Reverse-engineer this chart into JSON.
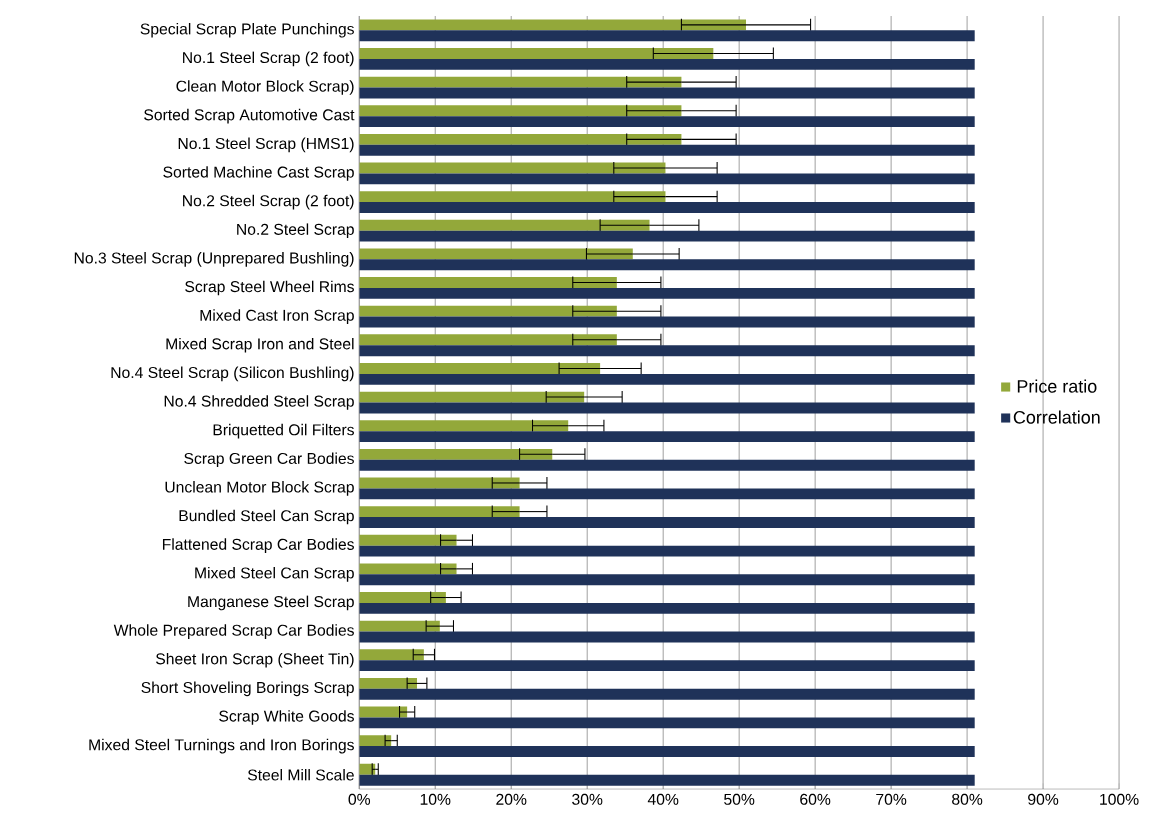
{
  "chart_data": {
    "type": "bar",
    "orientation": "horizontal",
    "categories": [
      "Special Scrap Plate Punchings",
      "No.1 Steel Scrap (2 foot)",
      "Clean Motor Block Scrap)",
      "Sorted Scrap Automotive Cast",
      "No.1 Steel Scrap (HMS1)",
      "Sorted Machine Cast Scrap",
      "No.2 Steel Scrap (2 foot)",
      "No.2 Steel Scrap",
      "No.3 Steel Scrap (Unprepared Bushling)",
      "Scrap Steel Wheel Rims",
      "Mixed Cast Iron Scrap",
      "Mixed Scrap Iron and Steel",
      "No.4 Steel Scrap (Silicon Bushling)",
      "No.4 Shredded Steel Scrap",
      "Briquetted Oil Filters",
      "Scrap Green Car Bodies",
      "Unclean Motor Block Scrap",
      "Bundled Steel Can Scrap",
      "Flattened Scrap Car Bodies",
      "Mixed Steel Can Scrap",
      "Manganese Steel Scrap",
      "Whole Prepared Scrap Car Bodies",
      "Sheet Iron Scrap (Sheet Tin)",
      "Short Shoveling Borings Scrap",
      "Scrap White Goods",
      "Mixed Steel Turnings and Iron Borings",
      "Steel Mill Scale"
    ],
    "series": [
      {
        "name": "Price ratio",
        "color": "#93a83a",
        "values": [
          50.9,
          46.6,
          42.4,
          42.4,
          42.4,
          40.3,
          40.3,
          38.2,
          36.0,
          33.9,
          33.9,
          33.9,
          31.7,
          29.6,
          27.5,
          25.4,
          21.1,
          21.1,
          12.8,
          12.8,
          11.4,
          10.6,
          8.5,
          7.6,
          6.3,
          4.2,
          2.1
        ],
        "errors": [
          8.5,
          7.9,
          7.2,
          7.2,
          7.2,
          6.8,
          6.8,
          6.5,
          6.1,
          5.8,
          5.8,
          5.8,
          5.4,
          5.0,
          4.7,
          4.3,
          3.6,
          3.6,
          2.1,
          2.1,
          2.0,
          1.8,
          1.4,
          1.3,
          1.0,
          0.8,
          0.4
        ]
      },
      {
        "name": "Correlation",
        "color": "#1f3259",
        "values": [
          81,
          81,
          81,
          81,
          81,
          81,
          81,
          81,
          81,
          81,
          81,
          81,
          81,
          81,
          81,
          81,
          81,
          81,
          81,
          81,
          81,
          81,
          81,
          81,
          81,
          81,
          81
        ]
      }
    ],
    "xlim": [
      0,
      100
    ],
    "xticks": [
      {
        "value": 0,
        "label": "0%"
      },
      {
        "value": 10,
        "label": "10%"
      },
      {
        "value": 20,
        "label": "20%"
      },
      {
        "value": 30,
        "label": "30%"
      },
      {
        "value": 40,
        "label": "40%"
      },
      {
        "value": 50,
        "label": "50%"
      },
      {
        "value": 60,
        "label": "60%"
      },
      {
        "value": 70,
        "label": "70%"
      },
      {
        "value": 80,
        "label": "80%"
      },
      {
        "value": 90,
        "label": "90%"
      },
      {
        "value": 100,
        "label": "100%"
      }
    ],
    "grid": "x",
    "legend": "right"
  }
}
